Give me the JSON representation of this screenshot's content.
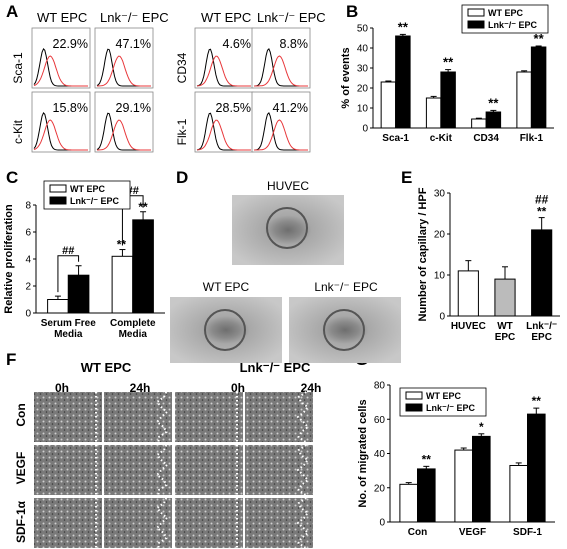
{
  "panel_labels": {
    "A": "A",
    "B": "B",
    "C": "C",
    "D": "D",
    "E": "E",
    "F": "F",
    "G": "G"
  },
  "panel_a": {
    "col_titles": [
      "WT EPC",
      "Lnk⁻/⁻ EPC",
      "WT EPC",
      "Lnk⁻/⁻ EPC"
    ],
    "histograms": [
      {
        "marker": "Sca-1",
        "group": "WT EPC",
        "percent": "22.9%"
      },
      {
        "marker": "Sca-1",
        "group": "Lnk-/- EPC",
        "percent": "47.1%"
      },
      {
        "marker": "CD34",
        "group": "WT EPC",
        "percent": "4.6%"
      },
      {
        "marker": "CD34",
        "group": "Lnk-/- EPC",
        "percent": "8.8%"
      },
      {
        "marker": "c-Kit",
        "group": "WT EPC",
        "percent": "15.8%"
      },
      {
        "marker": "c-Kit",
        "group": "Lnk-/- EPC",
        "percent": "29.1%"
      },
      {
        "marker": "Flk-1",
        "group": "WT EPC",
        "percent": "28.5%"
      },
      {
        "marker": "Flk-1",
        "group": "Lnk-/- EPC",
        "percent": "41.2%"
      }
    ],
    "colors": {
      "isotype": "#000000",
      "stained": "#e8383b"
    }
  },
  "panel_d": {
    "huvec": "HUVEC",
    "wt": "WT EPC",
    "lnk": "Lnk⁻/⁻ EPC"
  },
  "panel_f": {
    "wt": "WT EPC",
    "lnk": "Lnk⁻/⁻ EPC",
    "time0": "0h",
    "time24": "24h",
    "rows": [
      "Con",
      "VEGF",
      "SDF-1α"
    ]
  },
  "chart_data": [
    {
      "panel": "B",
      "type": "bar",
      "categories": [
        "Sca-1",
        "c-Kit",
        "CD34",
        "Flk-1"
      ],
      "series": [
        {
          "name": "WT EPC",
          "values": [
            23,
            15,
            4.5,
            28
          ],
          "errors": [
            0.5,
            0.8,
            0.4,
            0.6
          ]
        },
        {
          "name": "Lnk⁻/⁻ EPC",
          "values": [
            46,
            28,
            8,
            40.5
          ],
          "errors": [
            0.8,
            1.2,
            0.8,
            0.5
          ]
        }
      ],
      "ylabel": "% of events",
      "ylim": [
        0,
        50
      ],
      "yticks": [
        0,
        10,
        20,
        30,
        40,
        50
      ],
      "annotations": [
        "**",
        "**",
        "**",
        "**"
      ],
      "legend": "top-right"
    },
    {
      "panel": "C",
      "type": "bar",
      "categories": [
        "Serum Free Media",
        "Complete Media"
      ],
      "categories_lines": [
        [
          "Serum Free",
          "Media"
        ],
        [
          "Complete",
          "Media"
        ]
      ],
      "series": [
        {
          "name": "WT EPC",
          "values": [
            1.0,
            4.2
          ],
          "errors": [
            0.25,
            0.5
          ]
        },
        {
          "name": "Lnk⁻/⁻ EPC",
          "values": [
            2.8,
            6.9
          ],
          "errors": [
            0.7,
            0.6
          ]
        }
      ],
      "ylabel": "Relative proliferation",
      "ylim": [
        0,
        8
      ],
      "yticks": [
        0,
        2,
        4,
        6,
        8
      ],
      "annotations": {
        "pair_sig": "##",
        "star": "**"
      },
      "legend": "top-left"
    },
    {
      "panel": "E",
      "type": "bar",
      "categories": [
        "HUVEC",
        "WT EPC",
        "Lnk-/- EPC"
      ],
      "categories_lines": [
        [
          "HUVEC"
        ],
        [
          "WT",
          "EPC"
        ],
        [
          "Lnk⁻/⁻",
          "EPC"
        ]
      ],
      "values": [
        11,
        9,
        21
      ],
      "errors": [
        2.5,
        3,
        3
      ],
      "colors": [
        "#ffffff",
        "#bbbbbb",
        "#000000"
      ],
      "ylabel": "Number of capillary / HPF",
      "ylim": [
        0,
        30
      ],
      "yticks": [
        0,
        10,
        20,
        30
      ],
      "annotations": {
        "top1": "##",
        "top2": "**"
      }
    },
    {
      "panel": "G",
      "type": "bar",
      "categories": [
        "Con",
        "VEGF",
        "SDF-1"
      ],
      "series": [
        {
          "name": "WT EPC",
          "values": [
            22,
            42,
            33
          ],
          "errors": [
            1,
            1.2,
            1.5
          ]
        },
        {
          "name": "Lnk⁻/⁻ EPC",
          "values": [
            31,
            50,
            63
          ],
          "errors": [
            1.5,
            1.5,
            3.5
          ]
        }
      ],
      "ylabel": "No. of migrated cells",
      "ylim": [
        0,
        80
      ],
      "yticks": [
        0,
        20,
        40,
        60,
        80
      ],
      "annotations": [
        "**",
        "*",
        "**"
      ],
      "legend": "top-left"
    }
  ]
}
